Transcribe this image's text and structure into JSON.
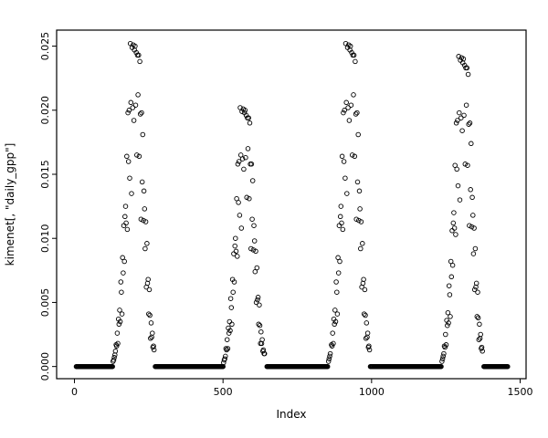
{
  "figure": {
    "background": "#ffffff",
    "foreground": "#000000"
  },
  "chart_data": {
    "type": "scatter",
    "title": "",
    "xlabel": "Index",
    "ylabel": "kimenet[, \"daily_gpp\"]",
    "xlim": [
      -60,
      1520
    ],
    "ylim": [
      -0.00095,
      0.02625
    ],
    "xticks": [
      0,
      500,
      1000,
      1500
    ],
    "xtick_labels": [
      "0",
      "500",
      "1000",
      "1500"
    ],
    "yticks": [
      0,
      0.005,
      0.01,
      0.015,
      0.02,
      0.025
    ],
    "ytick_labels": [
      "0.000",
      "0.005",
      "0.010",
      "0.015",
      "0.020",
      "0.025"
    ],
    "grid": false,
    "legend": "none",
    "marker": {
      "shape": "open-circle",
      "radius": 2.3,
      "color": "#000000",
      "stroke_width": 0.9
    },
    "zero_value": 0.0,
    "zero_runs": [
      [
        6,
        128,
        2
      ],
      [
        272,
        500,
        2
      ],
      [
        648,
        852,
        2
      ],
      [
        996,
        1234,
        2
      ],
      [
        1378,
        1458,
        2
      ]
    ],
    "points": [
      [
        130,
        0.0004
      ],
      [
        132,
        0.0005
      ],
      [
        134,
        0.0007
      ],
      [
        136,
        0.0009
      ],
      [
        138,
        0.0012
      ],
      [
        140,
        0.0017
      ],
      [
        142,
        0.0016
      ],
      [
        144,
        0.0026
      ],
      [
        146,
        0.0018
      ],
      [
        148,
        0.0037
      ],
      [
        150,
        0.0033
      ],
      [
        152,
        0.0044
      ],
      [
        154,
        0.0035
      ],
      [
        156,
        0.0066
      ],
      [
        158,
        0.0058
      ],
      [
        160,
        0.0041
      ],
      [
        162,
        0.0085
      ],
      [
        164,
        0.0073
      ],
      [
        166,
        0.011
      ],
      [
        168,
        0.0082
      ],
      [
        170,
        0.0117
      ],
      [
        172,
        0.0125
      ],
      [
        174,
        0.0112
      ],
      [
        176,
        0.0164
      ],
      [
        178,
        0.0107
      ],
      [
        180,
        0.0198
      ],
      [
        182,
        0.016
      ],
      [
        184,
        0.02
      ],
      [
        186,
        0.0147
      ],
      [
        188,
        0.0252
      ],
      [
        190,
        0.0206
      ],
      [
        192,
        0.0135
      ],
      [
        194,
        0.0249
      ],
      [
        196,
        0.0202
      ],
      [
        198,
        0.0251
      ],
      [
        200,
        0.0192
      ],
      [
        202,
        0.0247
      ],
      [
        204,
        0.025
      ],
      [
        206,
        0.0204
      ],
      [
        208,
        0.0245
      ],
      [
        210,
        0.0165
      ],
      [
        212,
        0.0243
      ],
      [
        214,
        0.0212
      ],
      [
        216,
        0.0243
      ],
      [
        218,
        0.0164
      ],
      [
        220,
        0.0238
      ],
      [
        222,
        0.0197
      ],
      [
        224,
        0.0115
      ],
      [
        226,
        0.0198
      ],
      [
        228,
        0.0144
      ],
      [
        230,
        0.0181
      ],
      [
        232,
        0.0114
      ],
      [
        234,
        0.0137
      ],
      [
        236,
        0.0123
      ],
      [
        238,
        0.0092
      ],
      [
        240,
        0.0113
      ],
      [
        242,
        0.0062
      ],
      [
        244,
        0.0096
      ],
      [
        246,
        0.0065
      ],
      [
        248,
        0.0068
      ],
      [
        250,
        0.0041
      ],
      [
        252,
        0.006
      ],
      [
        254,
        0.004
      ],
      [
        256,
        0.0022
      ],
      [
        258,
        0.0034
      ],
      [
        260,
        0.0023
      ],
      [
        262,
        0.0026
      ],
      [
        264,
        0.0015
      ],
      [
        266,
        0.0016
      ],
      [
        268,
        0.0013
      ],
      [
        502,
        0.0003
      ],
      [
        504,
        0.0005
      ],
      [
        506,
        0.0006
      ],
      [
        508,
        0.0008
      ],
      [
        510,
        0.0014
      ],
      [
        512,
        0.0013
      ],
      [
        514,
        0.0021
      ],
      [
        516,
        0.0014
      ],
      [
        518,
        0.003
      ],
      [
        520,
        0.0026
      ],
      [
        522,
        0.0035
      ],
      [
        524,
        0.0028
      ],
      [
        526,
        0.0053
      ],
      [
        528,
        0.0046
      ],
      [
        530,
        0.0033
      ],
      [
        532,
        0.0068
      ],
      [
        534,
        0.0058
      ],
      [
        536,
        0.0088
      ],
      [
        538,
        0.0066
      ],
      [
        540,
        0.0094
      ],
      [
        542,
        0.01
      ],
      [
        544,
        0.009
      ],
      [
        546,
        0.0131
      ],
      [
        548,
        0.0086
      ],
      [
        550,
        0.0158
      ],
      [
        552,
        0.0128
      ],
      [
        554,
        0.016
      ],
      [
        556,
        0.0118
      ],
      [
        558,
        0.0202
      ],
      [
        560,
        0.0165
      ],
      [
        562,
        0.0108
      ],
      [
        564,
        0.0199
      ],
      [
        566,
        0.0162
      ],
      [
        568,
        0.0201
      ],
      [
        570,
        0.0154
      ],
      [
        572,
        0.0198
      ],
      [
        574,
        0.02
      ],
      [
        576,
        0.0163
      ],
      [
        578,
        0.0196
      ],
      [
        580,
        0.0132
      ],
      [
        582,
        0.0194
      ],
      [
        584,
        0.017
      ],
      [
        586,
        0.0194
      ],
      [
        588,
        0.0131
      ],
      [
        590,
        0.019
      ],
      [
        592,
        0.0158
      ],
      [
        594,
        0.0092
      ],
      [
        596,
        0.0158
      ],
      [
        598,
        0.0115
      ],
      [
        600,
        0.0145
      ],
      [
        602,
        0.0091
      ],
      [
        604,
        0.011
      ],
      [
        606,
        0.0098
      ],
      [
        608,
        0.0074
      ],
      [
        610,
        0.009
      ],
      [
        612,
        0.005
      ],
      [
        614,
        0.0077
      ],
      [
        616,
        0.0052
      ],
      [
        618,
        0.0054
      ],
      [
        620,
        0.0033
      ],
      [
        622,
        0.0048
      ],
      [
        624,
        0.0032
      ],
      [
        626,
        0.0018
      ],
      [
        628,
        0.0027
      ],
      [
        630,
        0.0018
      ],
      [
        632,
        0.0021
      ],
      [
        634,
        0.0012
      ],
      [
        636,
        0.0013
      ],
      [
        638,
        0.001
      ],
      [
        640,
        0.001
      ],
      [
        855,
        0.0004
      ],
      [
        857,
        0.0006
      ],
      [
        859,
        0.0008
      ],
      [
        861,
        0.001
      ],
      [
        865,
        0.0017
      ],
      [
        867,
        0.0016
      ],
      [
        869,
        0.0026
      ],
      [
        871,
        0.0018
      ],
      [
        873,
        0.0037
      ],
      [
        875,
        0.0033
      ],
      [
        877,
        0.0044
      ],
      [
        879,
        0.0035
      ],
      [
        881,
        0.0066
      ],
      [
        883,
        0.0058
      ],
      [
        885,
        0.0041
      ],
      [
        887,
        0.0085
      ],
      [
        889,
        0.0073
      ],
      [
        891,
        0.011
      ],
      [
        893,
        0.0082
      ],
      [
        895,
        0.0117
      ],
      [
        897,
        0.0125
      ],
      [
        899,
        0.0112
      ],
      [
        901,
        0.0164
      ],
      [
        903,
        0.0107
      ],
      [
        905,
        0.0198
      ],
      [
        907,
        0.016
      ],
      [
        909,
        0.02
      ],
      [
        911,
        0.0147
      ],
      [
        913,
        0.0252
      ],
      [
        915,
        0.0206
      ],
      [
        917,
        0.0135
      ],
      [
        919,
        0.0249
      ],
      [
        921,
        0.0202
      ],
      [
        923,
        0.0251
      ],
      [
        925,
        0.0192
      ],
      [
        927,
        0.0247
      ],
      [
        929,
        0.025
      ],
      [
        931,
        0.0204
      ],
      [
        933,
        0.0245
      ],
      [
        935,
        0.0165
      ],
      [
        937,
        0.0243
      ],
      [
        939,
        0.0212
      ],
      [
        941,
        0.0243
      ],
      [
        943,
        0.0164
      ],
      [
        945,
        0.0238
      ],
      [
        947,
        0.0197
      ],
      [
        949,
        0.0115
      ],
      [
        951,
        0.0198
      ],
      [
        953,
        0.0144
      ],
      [
        955,
        0.0181
      ],
      [
        957,
        0.0114
      ],
      [
        959,
        0.0137
      ],
      [
        961,
        0.0123
      ],
      [
        963,
        0.0092
      ],
      [
        965,
        0.0113
      ],
      [
        967,
        0.0062
      ],
      [
        969,
        0.0096
      ],
      [
        971,
        0.0065
      ],
      [
        973,
        0.0068
      ],
      [
        975,
        0.0041
      ],
      [
        977,
        0.006
      ],
      [
        979,
        0.004
      ],
      [
        981,
        0.0022
      ],
      [
        983,
        0.0034
      ],
      [
        985,
        0.0023
      ],
      [
        987,
        0.0026
      ],
      [
        989,
        0.0015
      ],
      [
        991,
        0.0016
      ],
      [
        993,
        0.0013
      ],
      [
        1237,
        0.0004
      ],
      [
        1239,
        0.0006
      ],
      [
        1241,
        0.0008
      ],
      [
        1243,
        0.001
      ],
      [
        1245,
        0.0016
      ],
      [
        1247,
        0.0015
      ],
      [
        1249,
        0.0025
      ],
      [
        1251,
        0.0017
      ],
      [
        1253,
        0.0036
      ],
      [
        1255,
        0.0032
      ],
      [
        1257,
        0.0042
      ],
      [
        1259,
        0.0034
      ],
      [
        1261,
        0.0063
      ],
      [
        1263,
        0.0056
      ],
      [
        1265,
        0.0039
      ],
      [
        1267,
        0.0082
      ],
      [
        1269,
        0.007
      ],
      [
        1271,
        0.0106
      ],
      [
        1273,
        0.0079
      ],
      [
        1275,
        0.0112
      ],
      [
        1277,
        0.012
      ],
      [
        1279,
        0.0108
      ],
      [
        1281,
        0.0157
      ],
      [
        1283,
        0.0103
      ],
      [
        1285,
        0.019
      ],
      [
        1287,
        0.0154
      ],
      [
        1289,
        0.0192
      ],
      [
        1291,
        0.0141
      ],
      [
        1293,
        0.0242
      ],
      [
        1295,
        0.0198
      ],
      [
        1297,
        0.013
      ],
      [
        1299,
        0.0239
      ],
      [
        1301,
        0.0194
      ],
      [
        1303,
        0.0241
      ],
      [
        1305,
        0.0184
      ],
      [
        1307,
        0.0237
      ],
      [
        1309,
        0.024
      ],
      [
        1311,
        0.0196
      ],
      [
        1313,
        0.0235
      ],
      [
        1315,
        0.0158
      ],
      [
        1317,
        0.0233
      ],
      [
        1319,
        0.0204
      ],
      [
        1321,
        0.0233
      ],
      [
        1323,
        0.0157
      ],
      [
        1325,
        0.0228
      ],
      [
        1327,
        0.0189
      ],
      [
        1329,
        0.011
      ],
      [
        1331,
        0.019
      ],
      [
        1333,
        0.0138
      ],
      [
        1335,
        0.0174
      ],
      [
        1337,
        0.0109
      ],
      [
        1339,
        0.0132
      ],
      [
        1341,
        0.0118
      ],
      [
        1343,
        0.0088
      ],
      [
        1345,
        0.0108
      ],
      [
        1347,
        0.006
      ],
      [
        1349,
        0.0092
      ],
      [
        1351,
        0.0062
      ],
      [
        1353,
        0.0065
      ],
      [
        1355,
        0.0039
      ],
      [
        1357,
        0.0058
      ],
      [
        1359,
        0.0038
      ],
      [
        1361,
        0.0021
      ],
      [
        1363,
        0.0033
      ],
      [
        1365,
        0.0022
      ],
      [
        1367,
        0.0025
      ],
      [
        1369,
        0.0014
      ],
      [
        1371,
        0.0015
      ],
      [
        1373,
        0.0012
      ]
    ]
  }
}
